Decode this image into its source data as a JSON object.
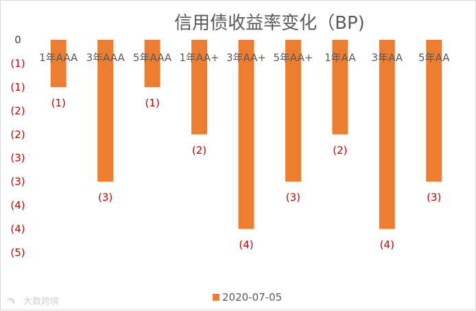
{
  "chart_data": {
    "type": "bar",
    "title": "信用债收益率变化（BP)",
    "categories": [
      "1年AAA",
      "3年AAA",
      "5年AAA",
      "1年AA+",
      "3年AA+",
      "5年AA+",
      "1年AA",
      "3年AA",
      "5年AA"
    ],
    "series": [
      {
        "name": "2020-07-05",
        "values": [
          -1,
          -3,
          -1,
          -2,
          -4,
          -3,
          -2,
          -4,
          -3
        ],
        "data_labels": [
          "(1)",
          "(3)",
          "(1)",
          "(2)",
          "(4)",
          "(3)",
          "(2)",
          "(4)",
          "(3)"
        ]
      }
    ],
    "yticks": [
      0,
      -0.5,
      -1,
      -1.5,
      -2,
      -2.5,
      -3,
      -3.5,
      -4,
      -4.5
    ],
    "ytick_labels": [
      "0",
      "(1)",
      "(1)",
      "(2)",
      "(2)",
      "(3)",
      "(3)",
      "(4)",
      "(4)",
      "(5)"
    ],
    "ylim": [
      -4.5,
      0
    ],
    "xlabel": "",
    "ylabel": "",
    "grid": false,
    "legend_position": "bottom",
    "colors": {
      "bar": "#ED7D31",
      "negative_text": "#C00000",
      "zero_text": "#404040",
      "axis_text": "#595959"
    }
  },
  "watermark": {
    "text": "大数跨境",
    "icon": "logo-swirl-icon"
  }
}
